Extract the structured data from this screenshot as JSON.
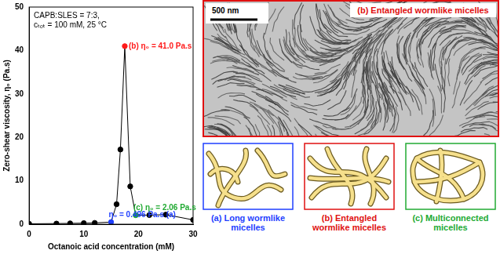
{
  "chart_data": {
    "type": "line",
    "x_label": "Octanoic acid concentration (mM)",
    "y_label": "Zero-shear viscosity, η₀ (Pa.s)",
    "info": [
      "CAPB:SLES = 7:3,",
      "cₜₒₜ = 100 mM, 25 °C"
    ],
    "x": [
      0,
      5,
      7.5,
      10,
      12,
      15,
      16,
      16.7,
      17.5,
      18.5,
      19.5,
      22,
      25,
      30
    ],
    "values": [
      0.1,
      0.15,
      0.2,
      0.25,
      0.3,
      0.496,
      4.6,
      17.2,
      41.0,
      8.7,
      2.06,
      2.1,
      2.2,
      1.0
    ],
    "color": "#000000",
    "colors": [
      "#000000",
      "#000000",
      "#000000",
      "#000000",
      "#000000",
      "#1f3fff",
      "#000000",
      "#000000",
      "#ff1a1a",
      "#000000",
      "#22aa33",
      "#000000",
      "#000000",
      "#000000"
    ],
    "marker": "circle",
    "xlim": [
      0,
      30
    ],
    "xticks": [
      0,
      10,
      20,
      30
    ],
    "ylim": [
      0,
      50
    ],
    "yticks": [
      0,
      10,
      20,
      30,
      40,
      50
    ],
    "grid": false,
    "annotations": [
      {
        "text": "η₀ = 0.496 Pa.s (a)",
        "x": 15,
        "y": 0.496,
        "color": "#1f3fff"
      },
      {
        "text": "(b) η₀ = 41.0 Pa.s",
        "x": 17.5,
        "y": 41.0,
        "color": "#ff1a1a"
      },
      {
        "text": "(c) η₀ = 2.06 Pa.s",
        "x": 19.5,
        "y": 2.06,
        "color": "#22aa33"
      }
    ]
  },
  "panels": {
    "micrograph": {
      "title": "(b) Entangled wormlike micelles",
      "scale_bar": "500 nm",
      "color": "#e01010"
    },
    "schematics": [
      {
        "caption": "(a) Long wormlike micelles",
        "color": "#1f3fff"
      },
      {
        "caption": "(b) Entangled wormlike micelles",
        "color": "#e01010"
      },
      {
        "caption": "(c) Multiconnected micelles",
        "color": "#22aa33"
      }
    ]
  }
}
